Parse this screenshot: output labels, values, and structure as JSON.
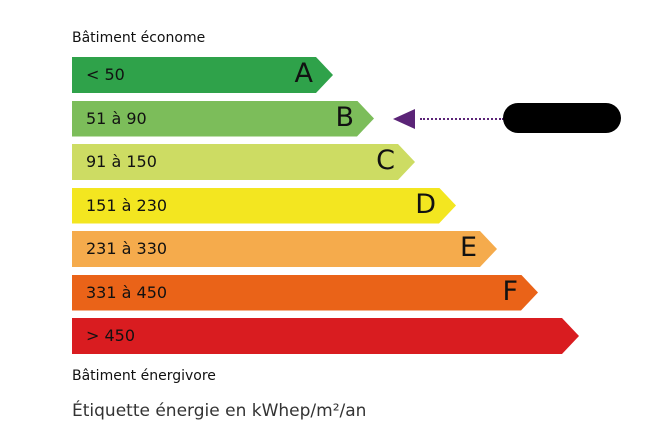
{
  "top_label": "Bâtiment économe",
  "bottom_label": "Bâtiment énergivore",
  "footer": "Étiquette énergie en kWhep/m²/an",
  "current_class": "B",
  "indicator_color": "#5b2477",
  "classes": [
    {
      "range": "< 50",
      "letter": "A",
      "color": "#2fa24a"
    },
    {
      "range": "51 à 90",
      "letter": "B",
      "color": "#7cbd5a"
    },
    {
      "range": "91 à 150",
      "letter": "C",
      "color": "#cddc63"
    },
    {
      "range": "151 à 230",
      "letter": "D",
      "color": "#f3e620"
    },
    {
      "range": "231 à 330",
      "letter": "E",
      "color": "#f5ab4c"
    },
    {
      "range": "331 à 450",
      "letter": "F",
      "color": "#ea6318"
    },
    {
      "range": "> 450",
      "letter": "",
      "color": "#d91c20"
    }
  ]
}
